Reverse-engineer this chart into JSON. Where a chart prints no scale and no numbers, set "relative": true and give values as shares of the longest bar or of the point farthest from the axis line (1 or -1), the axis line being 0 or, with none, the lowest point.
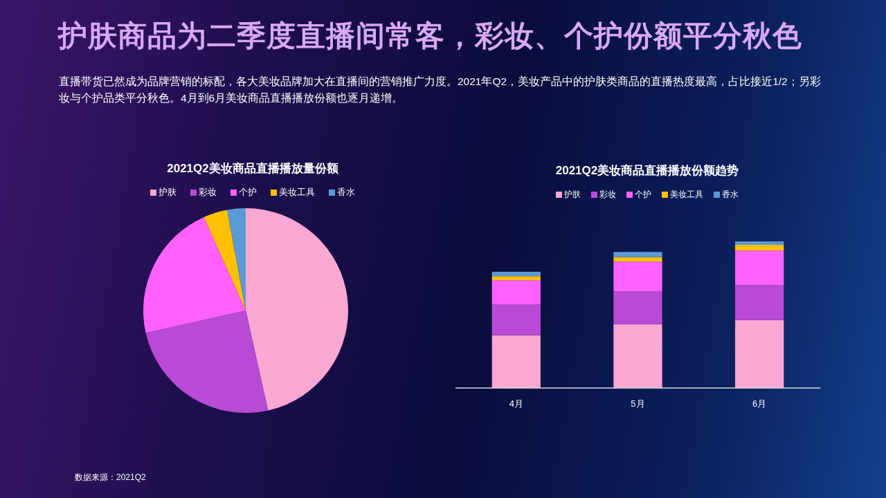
{
  "chart_data": [
    {
      "type": "other",
      "title": "护肤商品为二季度直播间常客，彩妆、个护份额平分秋色",
      "subtitle": "直播带货已然成为品牌营销的标配，各大美妆品牌加大在直播间的营销推广力度。2021年Q2，美妆产品中的护肤类商品的直播热度最高，占比接近1/2；另彩妆与个护品类平分秋色。4月到6月美妆商品直播播放份额也逐月递增。",
      "annotations": [
        "数据来源：2021Q2"
      ]
    },
    {
      "type": "pie",
      "title": "2021Q2美妆商品直播播放量份额",
      "categories": [
        "护肤",
        "彩妆",
        "个护",
        "美妆工具",
        "香水"
      ],
      "values": [
        46.5,
        25,
        21.8,
        3.8,
        2.9
      ],
      "colors": [
        "#f8a8d2",
        "#b94ad6",
        "#ff62fc",
        "#ffc000",
        "#5b9bd5"
      ],
      "legend": "top"
    },
    {
      "type": "bar",
      "title": "2021Q2美妆商品直播播放份额趋势",
      "categories": [
        "4月",
        "5月",
        "6月"
      ],
      "stacked": true,
      "relative": true,
      "legend": "top",
      "series": [
        {
          "name": "护肤",
          "color": "#f8a8d2",
          "values": [
            0.36,
            0.435,
            0.463
          ]
        },
        {
          "name": "彩妆",
          "color": "#b94ad6",
          "values": [
            0.21,
            0.225,
            0.238
          ]
        },
        {
          "name": "个护",
          "color": "#ff62fc",
          "values": [
            0.165,
            0.202,
            0.236
          ]
        },
        {
          "name": "美妆工具",
          "color": "#ffc000",
          "values": [
            0.028,
            0.031,
            0.04
          ]
        },
        {
          "name": "香水",
          "color": "#5b9bd5",
          "values": [
            0.03,
            0.035,
            0.023
          ]
        }
      ]
    }
  ]
}
